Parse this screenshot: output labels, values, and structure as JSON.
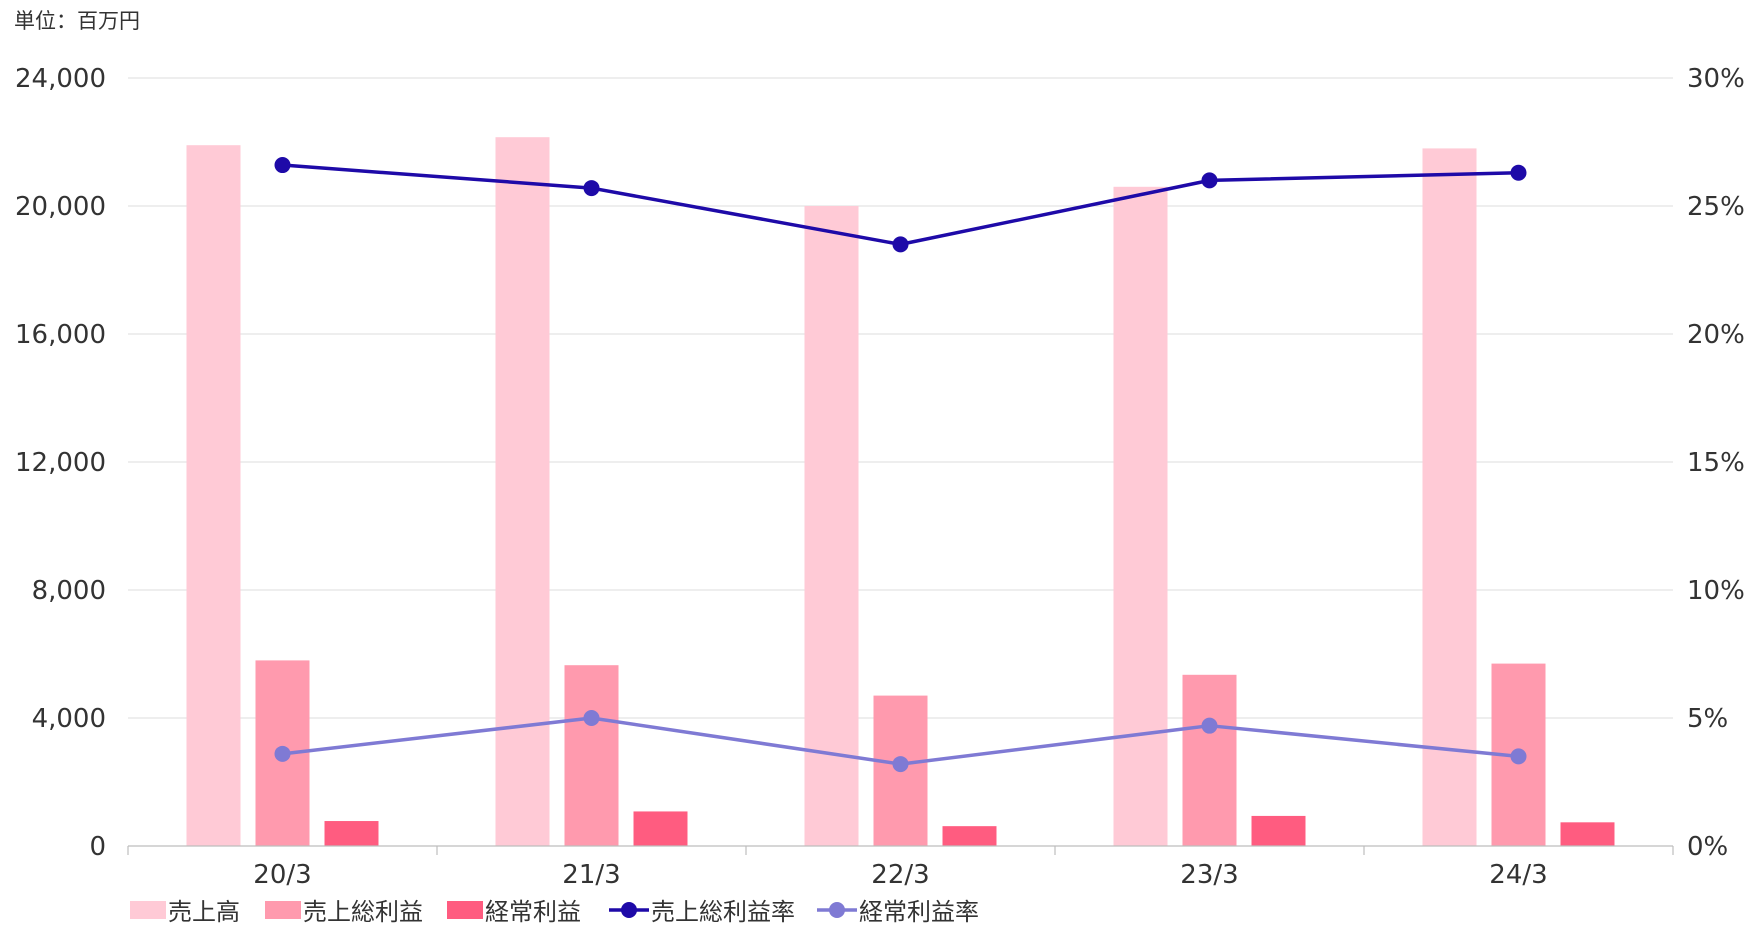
{
  "chart_data": {
    "type": "bar",
    "unit_label": "単位：百万円",
    "categories": [
      "20/3",
      "21/3",
      "22/3",
      "23/3",
      "24/3"
    ],
    "y_left": {
      "ylim": [
        0,
        24000
      ],
      "ticks": [
        0,
        4000,
        8000,
        12000,
        16000,
        20000,
        24000
      ],
      "tick_labels": [
        "0",
        "4,000",
        "8,000",
        "12,000",
        "16,000",
        "20,000",
        "24,000"
      ]
    },
    "y_right": {
      "ylim": [
        0,
        30
      ],
      "ticks": [
        0,
        5,
        10,
        15,
        20,
        25,
        30
      ],
      "tick_labels": [
        "0%",
        "5%",
        "10%",
        "15%",
        "20%",
        "25%",
        "30%"
      ]
    },
    "grid": true,
    "legend_position": "bottom-left",
    "series": [
      {
        "name": "売上高",
        "kind": "bar",
        "axis": "left",
        "color": "#ffcad6",
        "values": [
          21900,
          22150,
          20000,
          20600,
          21800
        ]
      },
      {
        "name": "売上総利益",
        "kind": "bar",
        "axis": "left",
        "color": "#ff9aae",
        "values": [
          5800,
          5650,
          4700,
          5350,
          5700
        ]
      },
      {
        "name": "経常利益",
        "kind": "bar",
        "axis": "left",
        "color": "#ff5c80",
        "values": [
          780,
          1080,
          620,
          940,
          740
        ]
      },
      {
        "name": "売上総利益率",
        "kind": "line",
        "axis": "right",
        "color": "#1e0aa8",
        "values": [
          26.6,
          25.7,
          23.5,
          26.0,
          26.3
        ]
      },
      {
        "name": "経常利益率",
        "kind": "line",
        "axis": "right",
        "color": "#7f7ad4",
        "values": [
          3.6,
          5.0,
          3.2,
          4.7,
          3.5
        ]
      }
    ]
  }
}
